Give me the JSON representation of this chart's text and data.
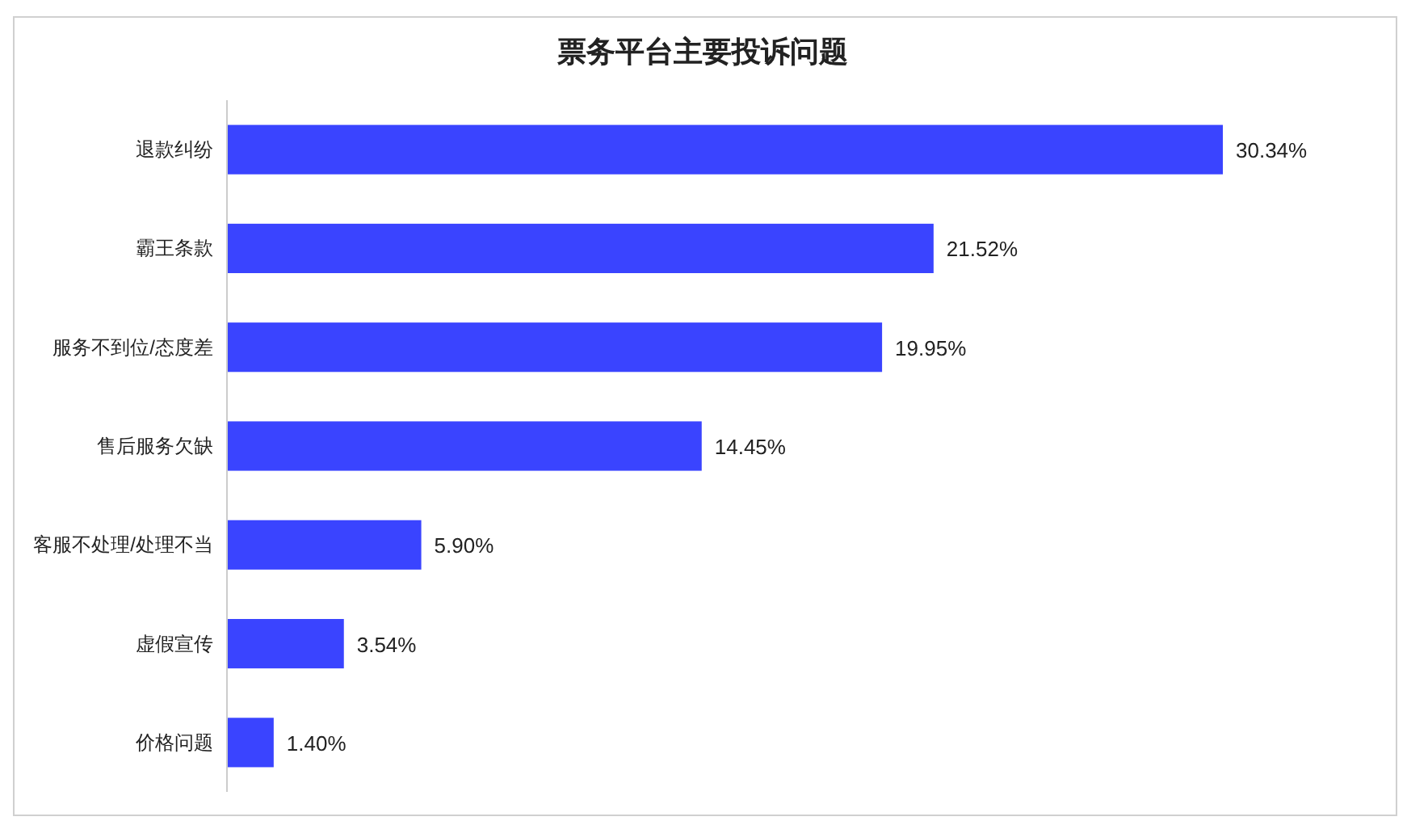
{
  "chart_data": {
    "type": "bar",
    "orientation": "horizontal",
    "title": "票务平台主要投诉问题",
    "categories": [
      "退款纠纷",
      "霸王条款",
      "服务不到位/态度差",
      "售后服务欠缺",
      "客服不处理/处理不当",
      "虚假宣传",
      "价格问题"
    ],
    "values": [
      30.34,
      21.52,
      19.95,
      14.45,
      5.9,
      3.54,
      1.4
    ],
    "value_labels": [
      "30.34%",
      "21.52%",
      "19.95%",
      "14.45%",
      "5.90%",
      "3.54%",
      "1.40%"
    ],
    "color": "#3a44ff"
  }
}
